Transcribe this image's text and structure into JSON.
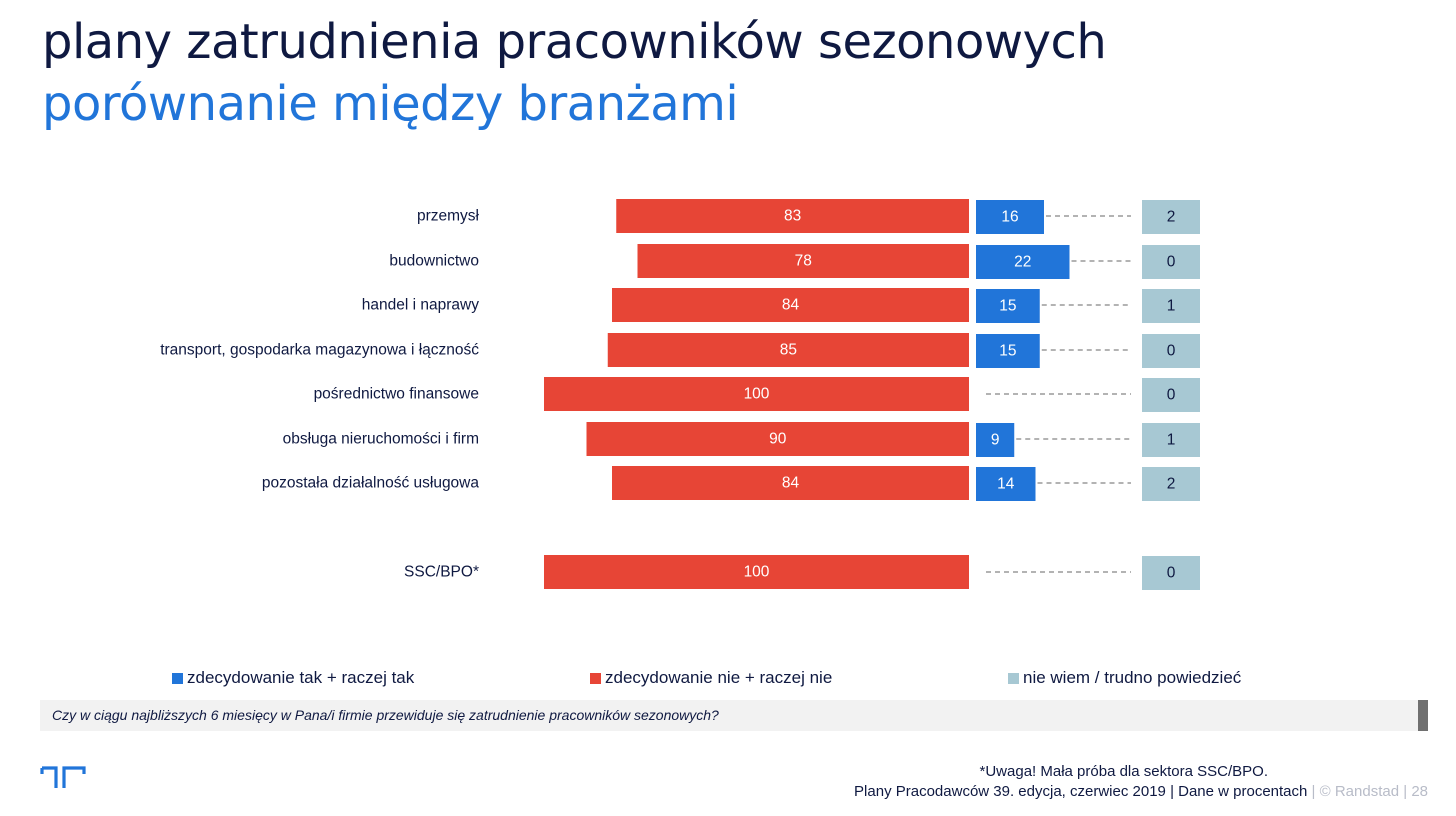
{
  "header": {
    "title": "plany zatrudnienia pracowników sezonowych",
    "subtitle": "porównanie między branżami"
  },
  "colors": {
    "yes": "#2175d9",
    "no": "#e74536",
    "dont_know": "#a7c8d3",
    "title": "#0f1941",
    "subtitle": "#2175d9"
  },
  "chart_data": {
    "type": "bar",
    "orientation": "horizontal",
    "categories": [
      "przemysł",
      "budownictwo",
      "handel i naprawy",
      "transport, gospodarka magazynowa i łączność",
      "pośrednictwo finansowe",
      "obsługa nieruchomości i firm",
      "pozostała działalność usługowa",
      "SSC/BPO*"
    ],
    "series": [
      {
        "name": "zdecydowanie nie + raczej nie",
        "values": [
          83,
          78,
          84,
          85,
          100,
          90,
          84,
          100
        ]
      },
      {
        "name": "zdecydowanie tak + raczej tak",
        "values": [
          16,
          22,
          15,
          15,
          0,
          9,
          14,
          0
        ]
      },
      {
        "name": "nie wiem / trudno powiedzieć",
        "values": [
          2,
          0,
          1,
          0,
          0,
          1,
          2,
          0
        ]
      }
    ],
    "legend_position": "bottom",
    "grid": false
  },
  "legend": {
    "yes_label": "zdecydowanie tak + raczej tak",
    "no_label": "zdecydowanie nie + raczej nie",
    "dont_know_label": "nie wiem / trudno powiedzieć"
  },
  "question": "Czy w ciągu najbliższych 6 miesięcy w Pana/i firmie przewiduje się zatrudnienie pracowników sezonowych?",
  "footer": {
    "note": "*Uwaga! Mała próba dla sektora SSC/BPO.",
    "source": "Plany Pracodawców 39. edycja, czerwiec 2019",
    "data_unit": "| Dane w procentach",
    "sep1": "|",
    "copyright": "© Randstad",
    "sep2": "|",
    "page_number": "28"
  }
}
